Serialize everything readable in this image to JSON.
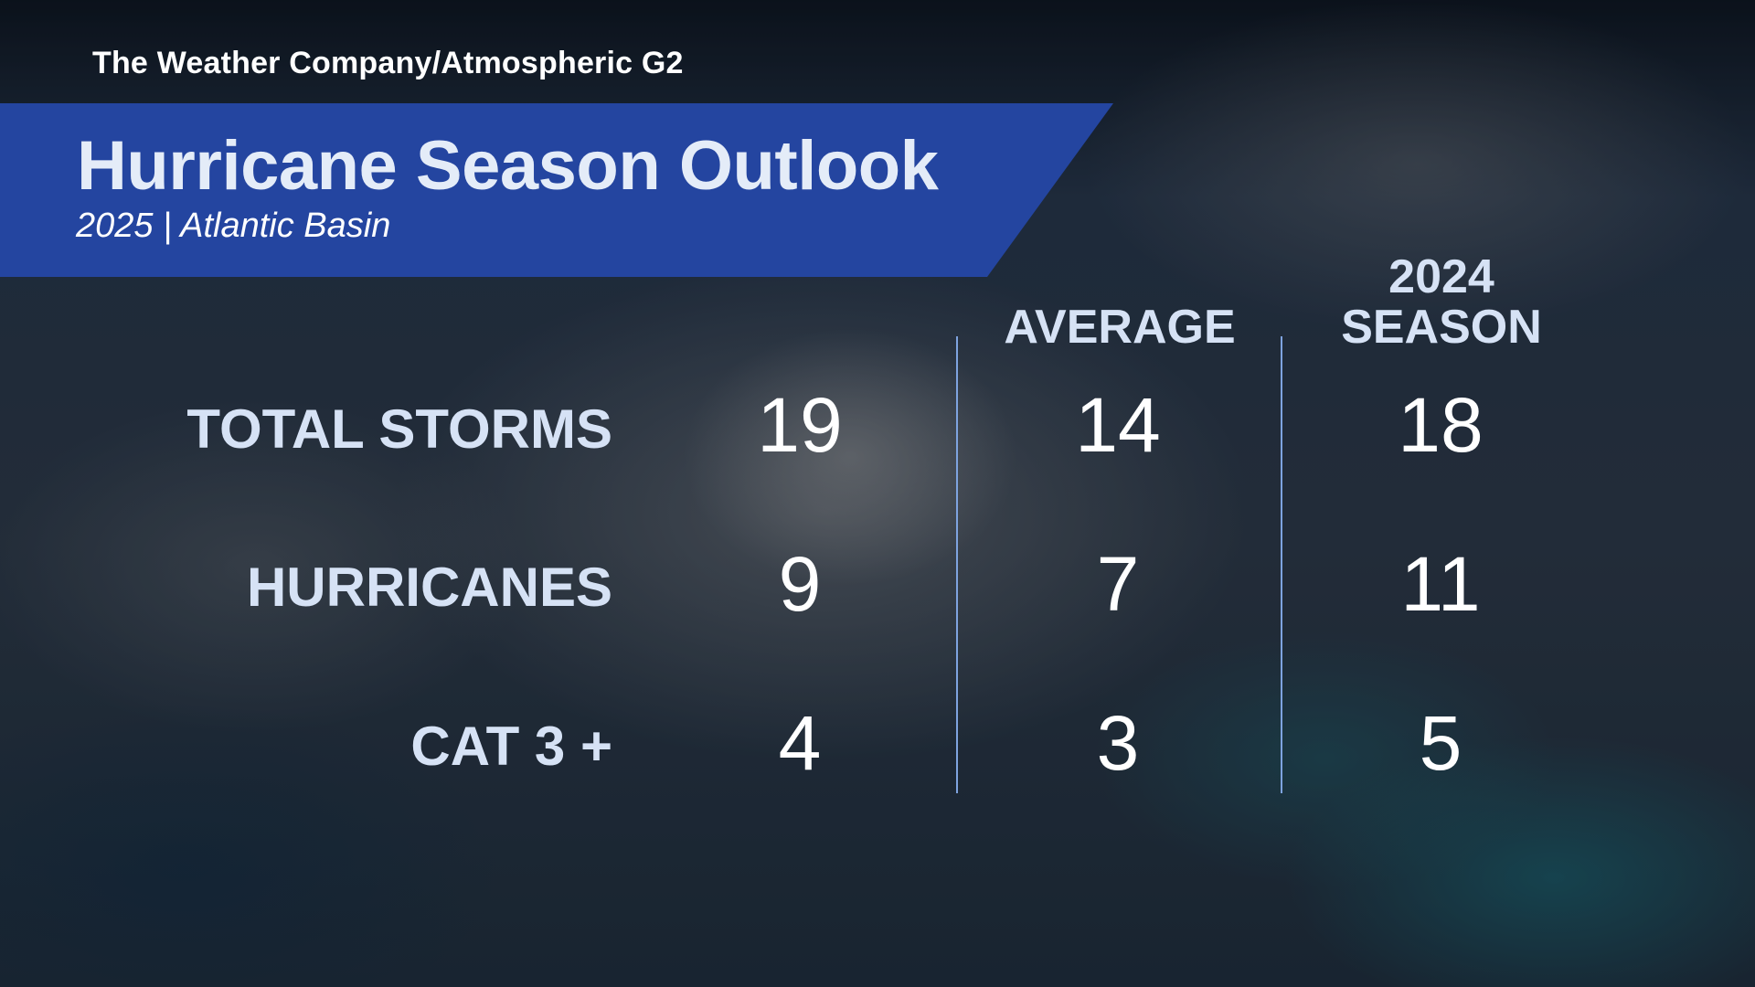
{
  "source": "The Weather Company/Atmospheric G2",
  "header": {
    "title": "Hurricane Season Outlook",
    "subtitle": "2025 | Atlantic Basin"
  },
  "columns": [
    {
      "label": ""
    },
    {
      "label": "AVERAGE"
    },
    {
      "label_line1": "2024",
      "label_line2": "SEASON"
    }
  ],
  "rows": [
    {
      "label": "TOTAL STORMS",
      "values": [
        "19",
        "14",
        "18"
      ]
    },
    {
      "label": "HURRICANES",
      "values": [
        "9",
        "7",
        "11"
      ]
    },
    {
      "label": "CAT 3 +",
      "values": [
        "4",
        "3",
        "5"
      ]
    }
  ],
  "colors": {
    "banner": "#2445a0",
    "divider": "#7ea3df",
    "label_text": "#d6e2f5"
  }
}
